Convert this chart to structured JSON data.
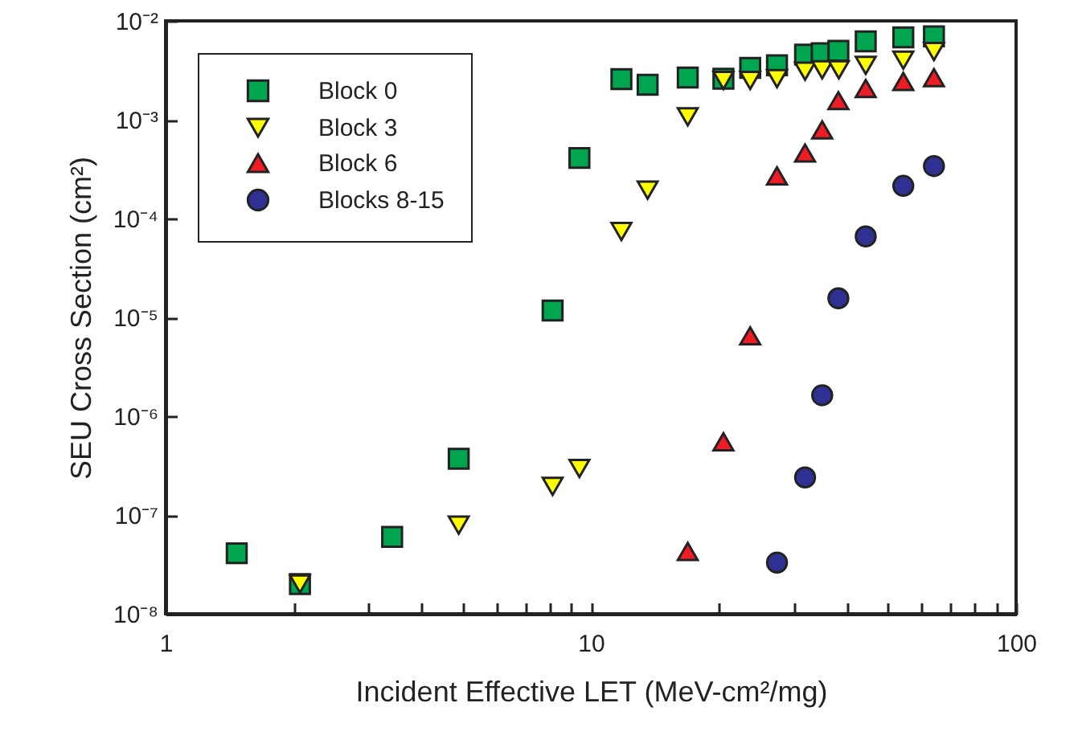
{
  "chart_data": {
    "type": "scatter",
    "xlabel": "Incident Effective LET (MeV-cm²/mg)",
    "ylabel": "SEU Cross Section (cm²)",
    "log": "xy",
    "grid": false,
    "legend": "top left",
    "xlim": [
      1,
      100
    ],
    "xticks": [
      1,
      {
        "value": 2,
        "label": null
      },
      {
        "value": 3,
        "label": null
      },
      {
        "value": 4,
        "label": null
      },
      {
        "value": 5,
        "label": null
      },
      {
        "value": 6,
        "label": null
      },
      {
        "value": 7,
        "label": null
      },
      {
        "value": 8,
        "label": null
      },
      {
        "value": 9,
        "label": null
      },
      10,
      {
        "value": 20,
        "label": null
      },
      {
        "value": 30,
        "label": null
      },
      {
        "value": 40,
        "label": null
      },
      {
        "value": 50,
        "label": null
      },
      {
        "value": 60,
        "label": null
      },
      {
        "value": 70,
        "label": null
      },
      {
        "value": 80,
        "label": null
      },
      {
        "value": 90,
        "label": null
      },
      100
    ],
    "ylim": [
      1e-08,
      0.01
    ],
    "yticks": [
      {
        "value": 1e-08,
        "label": "10⁻⁸"
      },
      {
        "value": 1e-07,
        "label": "10⁻⁷"
      },
      {
        "value": 1e-06,
        "label": "10⁻⁶"
      },
      {
        "value": 1e-05,
        "label": "10⁻⁵"
      },
      {
        "value": 0.0001,
        "label": "10⁻⁴"
      },
      {
        "value": 0.001,
        "label": "10⁻³"
      },
      {
        "value": 0.01,
        "label": "10⁻²"
      }
    ],
    "series": [
      {
        "name": "Block 0",
        "color": "#00a550",
        "marker": "square",
        "x": [
          1.47,
          2.07,
          3.41,
          4.89,
          8.13,
          9.4,
          11.8,
          13.6,
          16.9,
          20.5,
          23.7,
          27.4,
          31.9,
          34.9,
          38.2,
          44.3,
          54.3,
          64.1
        ],
        "values": [
          4.1e-08,
          2e-08,
          6e-08,
          3.7e-07,
          1.17e-05,
          0.00041,
          0.00257,
          0.00226,
          0.00267,
          0.0026,
          0.00334,
          0.00355,
          0.00456,
          0.0047,
          0.00497,
          0.0062,
          0.0068,
          0.00696
        ]
      },
      {
        "name": "Block 3",
        "color": "#ffff00",
        "marker": "triangle-down",
        "x": [
          2.07,
          4.89,
          8.13,
          9.4,
          11.8,
          13.6,
          16.9,
          20.5,
          23.7,
          27.4,
          31.9,
          35,
          38.3,
          44.3,
          54.3,
          64.1
        ],
        "values": [
          2e-08,
          7.9e-08,
          1.95e-07,
          2.95e-07,
          7.4e-05,
          0.000194,
          0.00107,
          0.0025,
          0.0025,
          0.0026,
          0.0031,
          0.0032,
          0.0032,
          0.00355,
          0.004,
          0.0049
        ]
      },
      {
        "name": "Block 6",
        "color": "#ee1c24",
        "marker": "triangle",
        "x": [
          16.9,
          20.5,
          23.7,
          27.4,
          31.9,
          35,
          38.2,
          44.3,
          54.3,
          64.1
        ],
        "values": [
          4.27e-08,
          5.5e-07,
          6.5e-06,
          0.00027,
          0.00046,
          0.00079,
          0.00156,
          0.00207,
          0.00244,
          0.00267
        ]
      },
      {
        "name": "Blocks 8-15",
        "color": "#2e3192",
        "marker": "circle",
        "x": [
          27.4,
          31.9,
          35,
          38.2,
          44.3,
          54.3,
          64.1
        ],
        "values": [
          3.3e-08,
          2.4e-07,
          1.63e-06,
          1.56e-05,
          6.6e-05,
          0.000214,
          0.00034
        ]
      }
    ]
  }
}
